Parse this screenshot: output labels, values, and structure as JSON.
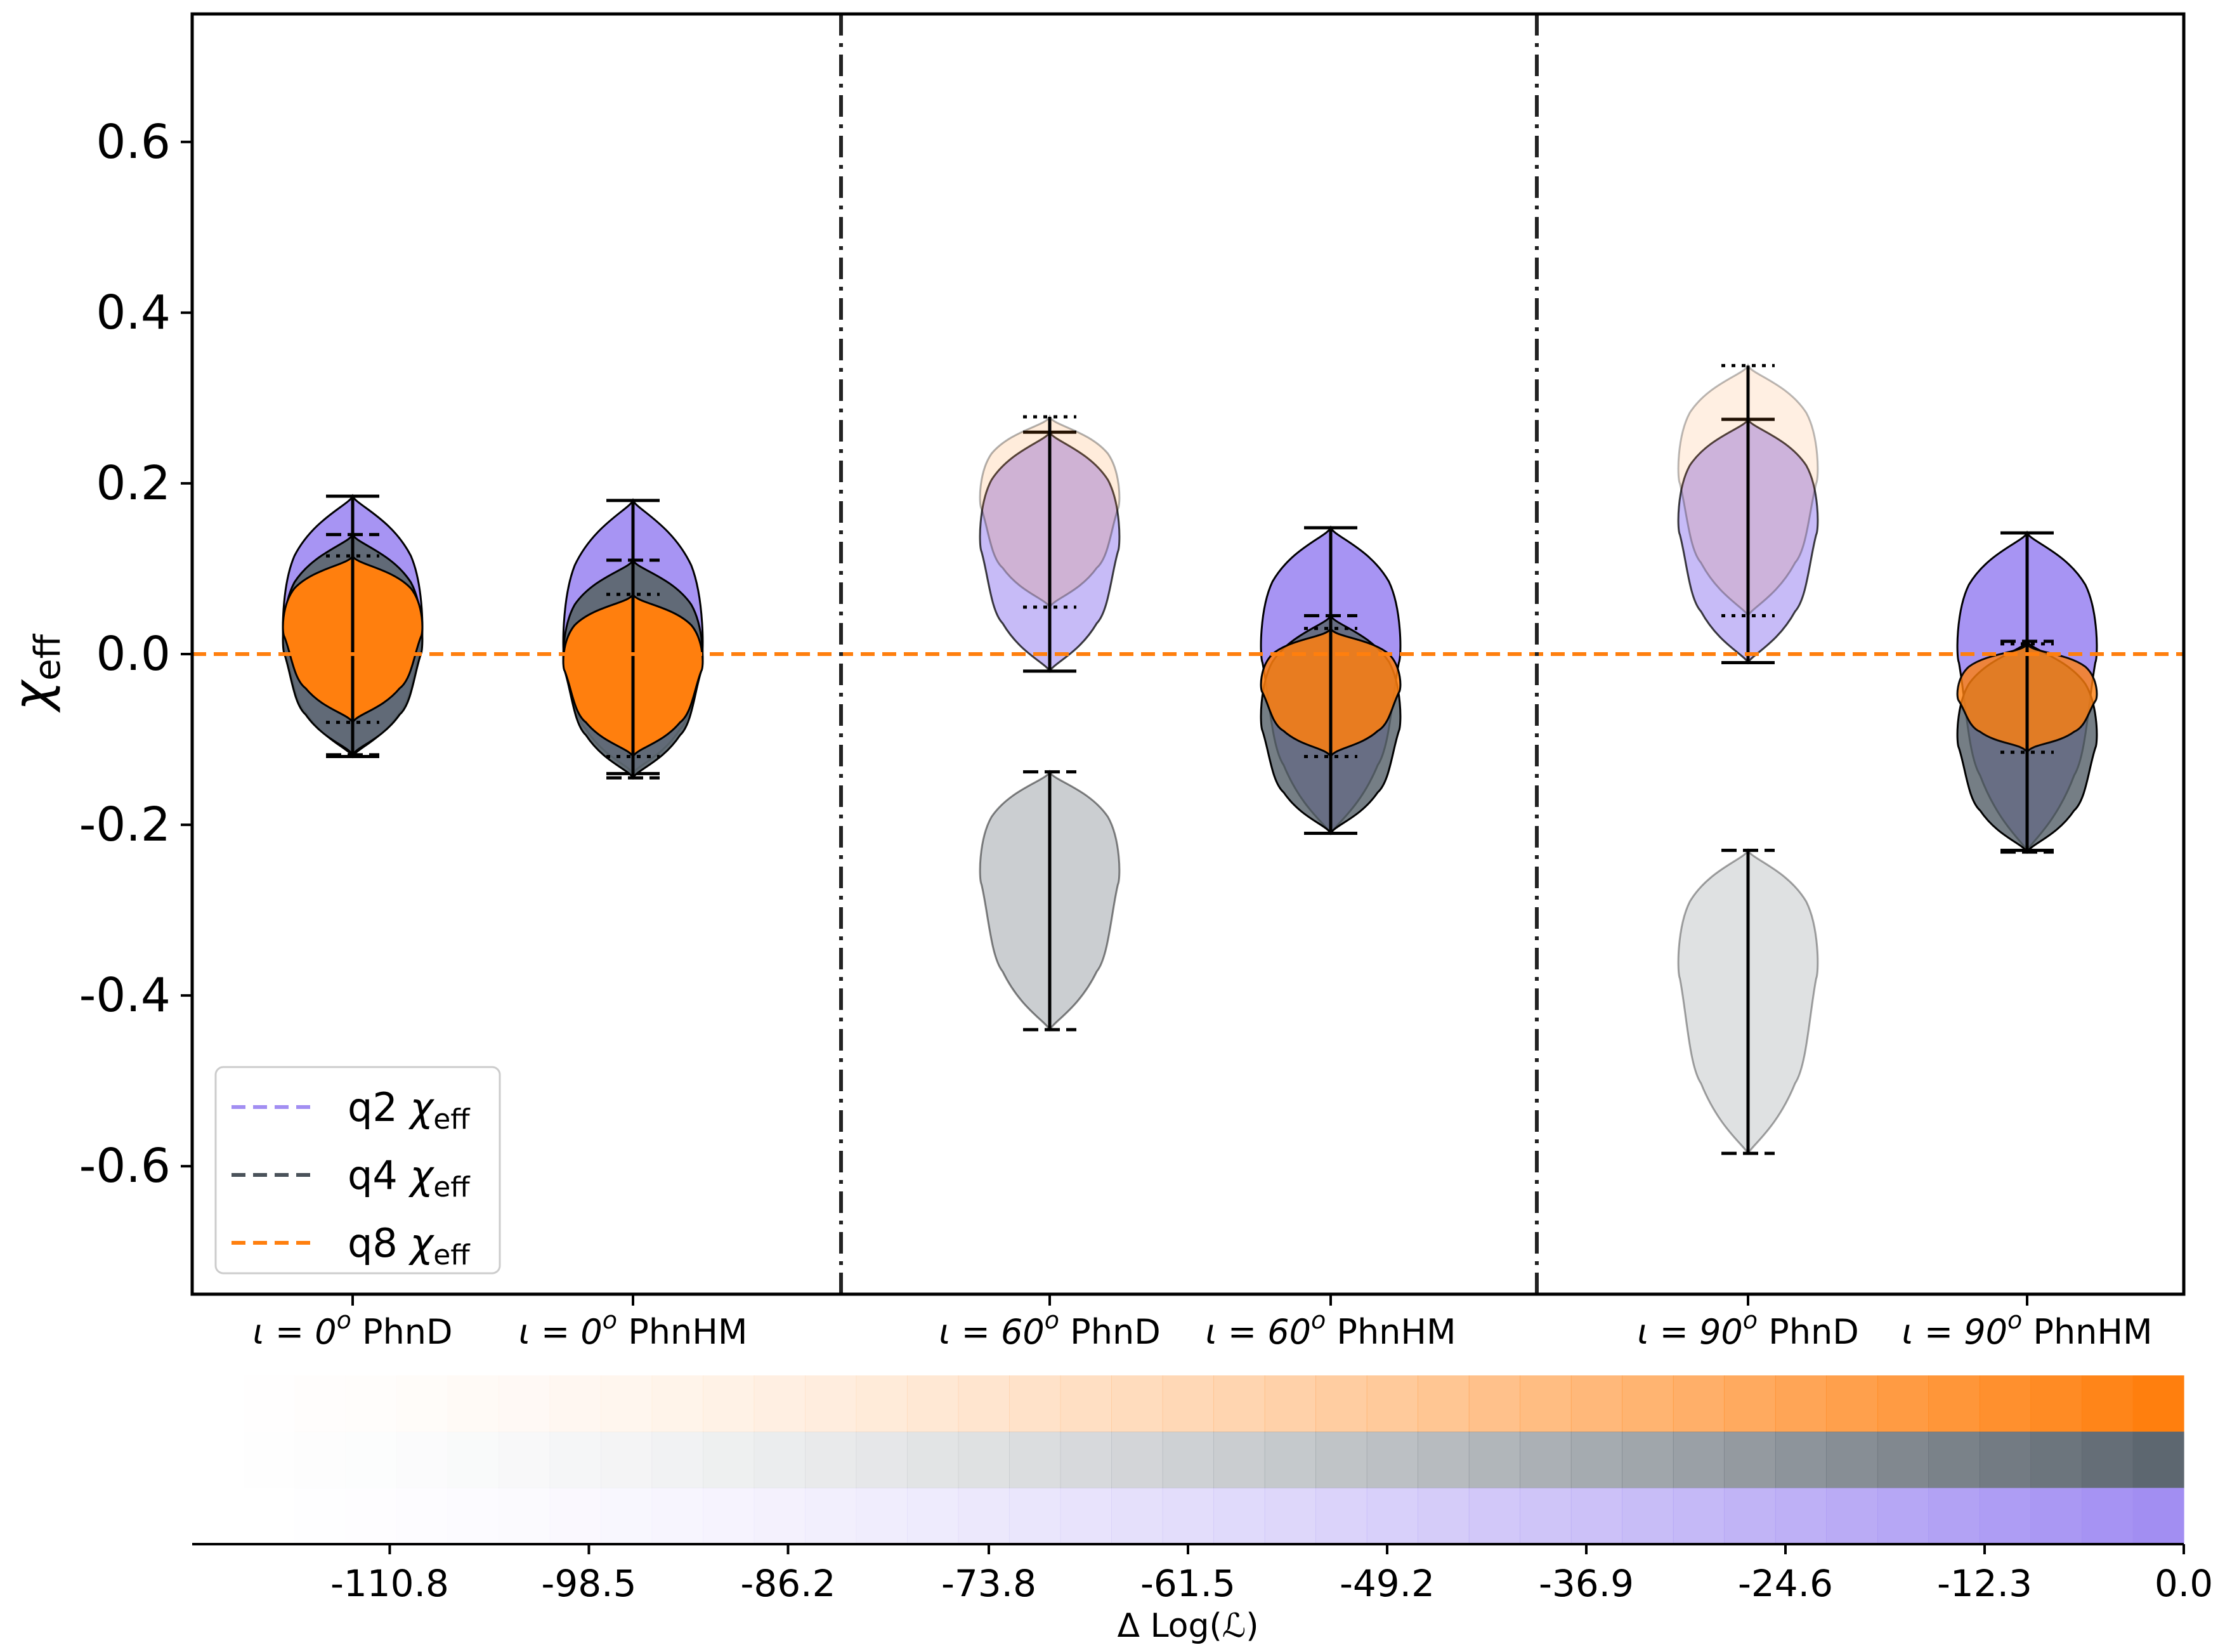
{
  "chart_data": {
    "type": "violin",
    "ylabel_symbol": "χ",
    "ylabel_sub": "eff",
    "ylim": [
      -0.75,
      0.75
    ],
    "yticks": [
      0.6,
      0.4,
      0.2,
      0.0,
      -0.2,
      -0.4,
      -0.6
    ],
    "ytick_labels": [
      "0.6",
      "0.4",
      "0.2",
      "0.0",
      "-0.2",
      "-0.4",
      "-0.6"
    ],
    "reference_line": {
      "y": 0.0,
      "color": "#ff7f0e",
      "style": "dashed"
    },
    "group_separators": [
      "between groups 1-2",
      "between groups 3-4"
    ],
    "categories": [
      {
        "iota": "ι = 0",
        "sup": "o",
        "model": " PhnD"
      },
      {
        "iota": "ι = 0",
        "sup": "o",
        "model": " PhnHM"
      },
      {
        "iota": "ι = 60",
        "sup": "o",
        "model": " PhnD"
      },
      {
        "iota": "ι = 60",
        "sup": "o",
        "model": " PhnHM"
      },
      {
        "iota": "ι = 90",
        "sup": "o",
        "model": " PhnD"
      },
      {
        "iota": "ι = 90",
        "sup": "o",
        "model": " PhnHM"
      }
    ],
    "series": [
      {
        "name": "q2",
        "color": "#a28ef2",
        "violins": [
          {
            "min": -0.12,
            "max": 0.185,
            "median": 0.01,
            "opacity": 0.95
          },
          {
            "min": -0.14,
            "max": 0.18,
            "median": -0.01,
            "opacity": 0.95
          },
          {
            "min": -0.02,
            "max": 0.26,
            "median": 0.12,
            "opacity": 0.6
          },
          {
            "min": -0.21,
            "max": 0.148,
            "median": -0.01,
            "opacity": 0.95
          },
          {
            "min": -0.01,
            "max": 0.275,
            "median": 0.14,
            "opacity": 0.6
          },
          {
            "min": -0.23,
            "max": 0.142,
            "median": -0.01,
            "opacity": 0.95
          }
        ]
      },
      {
        "name": "q4",
        "color": "#5d6770",
        "violins": [
          {
            "min": -0.118,
            "max": 0.14,
            "median": 0.0,
            "opacity": 0.95
          },
          {
            "min": -0.145,
            "max": 0.11,
            "median": -0.02,
            "opacity": 0.95
          },
          {
            "min": -0.44,
            "max": -0.138,
            "median": -0.27,
            "opacity": 0.32
          },
          {
            "min": -0.21,
            "max": 0.045,
            "median": -0.09,
            "opacity": 0.85
          },
          {
            "min": -0.585,
            "max": -0.23,
            "median": -0.38,
            "opacity": 0.2
          },
          {
            "min": -0.232,
            "max": 0.015,
            "median": -0.11,
            "opacity": 0.85
          }
        ]
      },
      {
        "name": "q8",
        "color": "#ff7f0e",
        "violins": [
          {
            "min": -0.08,
            "max": 0.115,
            "median": 0.02,
            "opacity": 1.0
          },
          {
            "min": -0.12,
            "max": 0.07,
            "median": -0.02,
            "opacity": 1.0
          },
          {
            "min": 0.055,
            "max": 0.278,
            "median": 0.17,
            "opacity": 0.15
          },
          {
            "min": -0.12,
            "max": 0.03,
            "median": -0.045,
            "opacity": 0.85
          },
          {
            "min": 0.045,
            "max": 0.338,
            "median": 0.2,
            "opacity": 0.12
          },
          {
            "min": -0.115,
            "max": 0.012,
            "median": -0.055,
            "opacity": 0.8
          }
        ]
      }
    ],
    "legend": {
      "position": "lower-left",
      "entries": [
        {
          "name": "q2",
          "symbol": " χ",
          "sub": "eff",
          "color": "#a28ef2"
        },
        {
          "name": "q4",
          "symbol": " χ",
          "sub": "eff",
          "color": "#4a525a"
        },
        {
          "name": "q8",
          "symbol": " χ",
          "sub": "eff",
          "color": "#ff7f0e"
        }
      ]
    },
    "colorbar": {
      "label": "Δ Log(ℒ)",
      "range": [
        -123.0,
        0.0
      ],
      "tick_values": [
        -110.8,
        -98.5,
        -86.2,
        -73.8,
        -61.5,
        -49.2,
        -36.9,
        -24.6,
        -12.3,
        0.0
      ],
      "tick_labels": [
        "-110.8",
        "-98.5",
        "-86.2",
        "-73.8",
        "-61.5",
        "-49.2",
        "-36.9",
        "-24.6",
        "-12.3",
        "0.0"
      ],
      "rows": [
        "#ff7f0e",
        "#5d6770",
        "#a28ef2"
      ],
      "segments": 39
    }
  }
}
